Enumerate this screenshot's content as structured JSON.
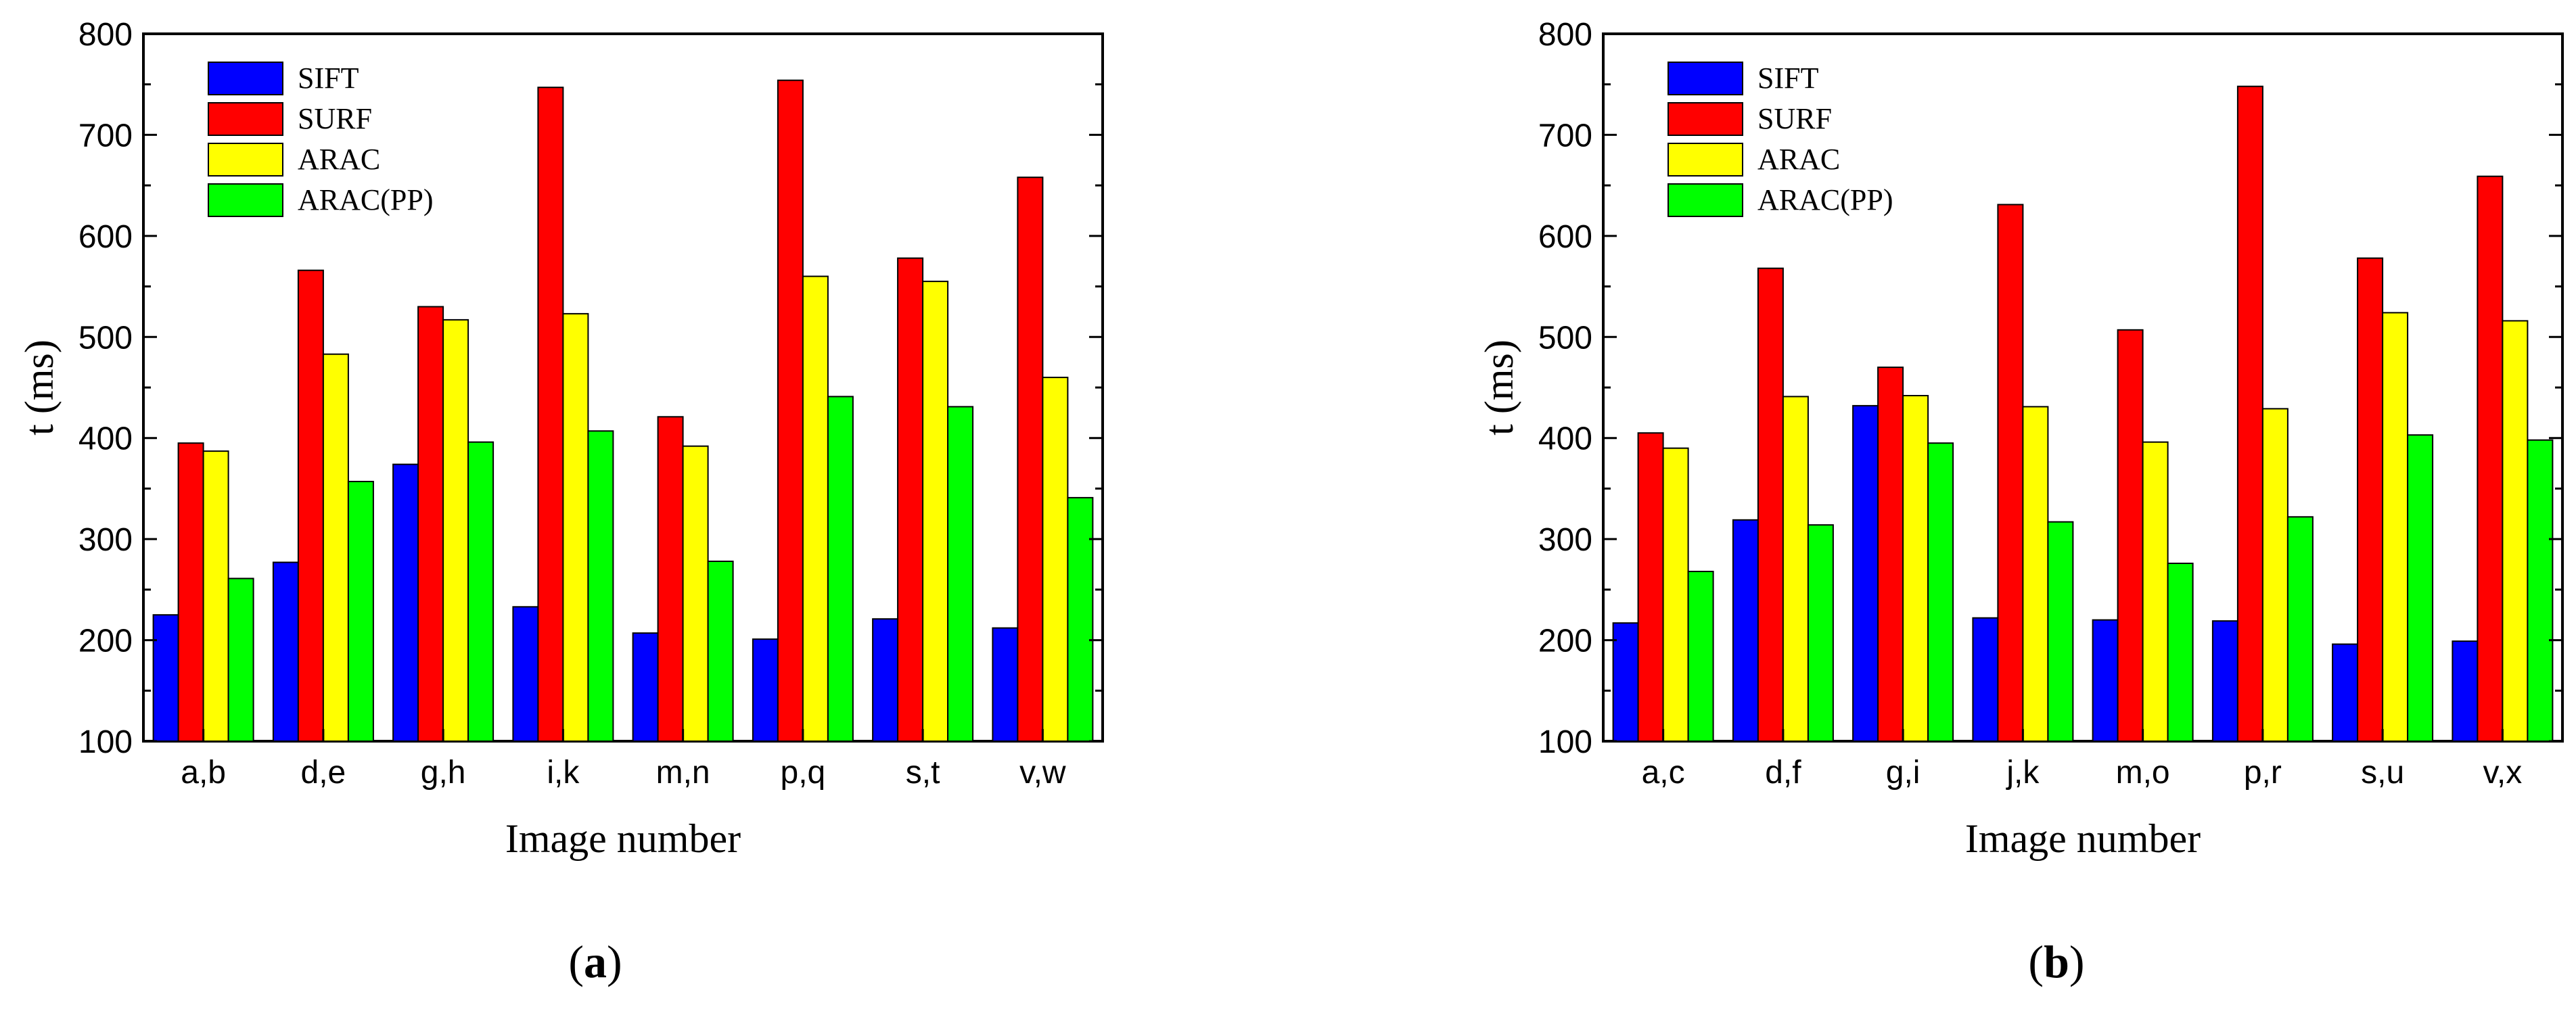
{
  "colors": {
    "SIFT": "#0000ff",
    "SURF": "#ff0000",
    "ARAC": "#ffff00",
    "ARAC(PP)": "#00ff00",
    "bar_stroke": "#000000",
    "axis": "#000000"
  },
  "chart_data": [
    {
      "type": "bar",
      "panel_label": "a",
      "title": "",
      "xlabel": "Image number",
      "ylabel": "t (ms)",
      "ylim": [
        100,
        800
      ],
      "yticks": [
        100,
        200,
        300,
        400,
        500,
        600,
        700,
        800
      ],
      "grid": false,
      "legend_position": "top-left",
      "categories": [
        "a,b",
        "d,e",
        "g,h",
        "i,k",
        "m,n",
        "p,q",
        "s,t",
        "v,w"
      ],
      "series": [
        {
          "name": "SIFT",
          "values": [
            225,
            277,
            374,
            233,
            207,
            201,
            221,
            212
          ]
        },
        {
          "name": "SURF",
          "values": [
            395,
            566,
            530,
            747,
            421,
            754,
            578,
            658
          ]
        },
        {
          "name": "ARAC",
          "values": [
            387,
            483,
            517,
            523,
            392,
            560,
            555,
            460
          ]
        },
        {
          "name": "ARAC(PP)",
          "values": [
            261,
            357,
            396,
            407,
            278,
            441,
            431,
            341
          ]
        }
      ]
    },
    {
      "type": "bar",
      "panel_label": "b",
      "title": "",
      "xlabel": "Image number",
      "ylabel": "t (ms)",
      "ylim": [
        100,
        800
      ],
      "yticks": [
        100,
        200,
        300,
        400,
        500,
        600,
        700,
        800
      ],
      "grid": false,
      "legend_position": "top-left",
      "categories": [
        "a,c",
        "d,f",
        "g,i",
        "j,k",
        "m,o",
        "p,r",
        "s,u",
        "v,x"
      ],
      "series": [
        {
          "name": "SIFT",
          "values": [
            217,
            319,
            432,
            222,
            220,
            219,
            196,
            199
          ]
        },
        {
          "name": "SURF",
          "values": [
            405,
            568,
            470,
            631,
            507,
            748,
            578,
            659
          ]
        },
        {
          "name": "ARAC",
          "values": [
            390,
            441,
            442,
            431,
            396,
            429,
            524,
            516
          ]
        },
        {
          "name": "ARAC(PP)",
          "values": [
            268,
            314,
            395,
            317,
            276,
            322,
            403,
            398
          ]
        }
      ]
    }
  ]
}
